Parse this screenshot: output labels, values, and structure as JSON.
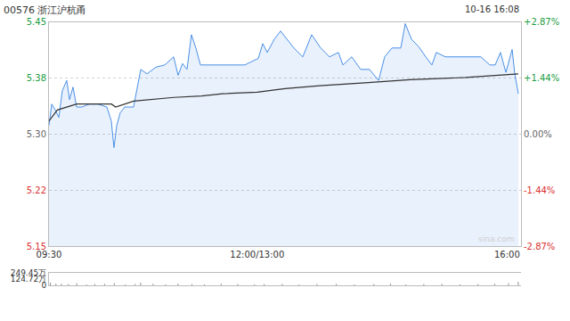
{
  "chart_data": [
    {
      "type": "line",
      "title": "00576 浙江沪杭甬",
      "subtitle": "10-16 16:08",
      "watermark": "sina.com",
      "grid": true,
      "xlim": [
        0,
        340
      ],
      "xticks": [
        {
          "value": 0,
          "label": "09:30"
        },
        {
          "value": 150,
          "label": "12:00/13:00"
        },
        {
          "value": 330,
          "label": "16:00"
        }
      ],
      "ylim": [
        5.148,
        5.452
      ],
      "yticks": [
        {
          "value": 5.148,
          "label": "5.15"
        },
        {
          "value": 5.224,
          "label": "5.22"
        },
        {
          "value": 5.3,
          "label": "5.30"
        },
        {
          "value": 5.376,
          "label": "5.38"
        },
        {
          "value": 5.452,
          "label": "5.45"
        }
      ],
      "y2lim": [
        -2.87,
        2.87
      ],
      "y2ticks": [
        {
          "value": -2.87,
          "label": "-2.87%"
        },
        {
          "value": -1.44,
          "label": "-1.44%"
        },
        {
          "value": 0,
          "label": "0.00%"
        },
        {
          "value": 1.44,
          "label": "+1.44%"
        },
        {
          "value": 2.87,
          "label": "+2.87%"
        }
      ],
      "series": [
        {
          "color": "#4a8fe6",
          "marker": "area",
          "x": [
            0,
            2,
            4.5,
            7.1,
            9.6,
            12.8,
            14.8,
            17.3,
            19.9,
            23.7,
            28.9,
            35.3,
            41.7,
            44.9,
            46.8,
            48.8,
            51.3,
            54.5,
            60.9,
            66.1,
            70.6,
            77.0,
            83.4,
            89.8,
            93.0,
            96.2,
            99.4,
            102.6,
            105.8,
            109.1,
            115.5,
            125.1,
            141.1,
            150.8,
            154.0,
            157.2,
            162.3,
            166.8,
            171.3,
            176.4,
            182.8,
            189.2,
            195.7,
            202.1,
            208.5,
            211.7,
            218.1,
            224.5,
            230.9,
            237.4,
            241.8,
            247.0,
            253.4,
            256.6,
            261.1,
            266.2,
            271.4,
            275.8,
            279.0,
            285.5,
            298.3,
            311.1,
            317.5,
            321.4,
            325.2,
            329.1,
            333.6,
            335.5,
            338.1
          ],
          "values": [
            5.312,
            5.341,
            5.333,
            5.323,
            5.359,
            5.373,
            5.347,
            5.364,
            5.337,
            5.337,
            5.341,
            5.341,
            5.337,
            5.318,
            5.282,
            5.312,
            5.329,
            5.337,
            5.337,
            5.388,
            5.382,
            5.391,
            5.394,
            5.405,
            5.38,
            5.396,
            5.388,
            5.435,
            5.417,
            5.394,
            5.394,
            5.394,
            5.394,
            5.403,
            5.423,
            5.411,
            5.429,
            5.44,
            5.429,
            5.417,
            5.405,
            5.435,
            5.417,
            5.405,
            5.411,
            5.394,
            5.405,
            5.388,
            5.388,
            5.373,
            5.405,
            5.417,
            5.417,
            5.45,
            5.429,
            5.419,
            5.405,
            5.394,
            5.411,
            5.405,
            5.405,
            5.405,
            5.394,
            5.394,
            5.411,
            5.384,
            5.415,
            5.382,
            5.355
          ]
        },
        {
          "color": "#333333",
          "marker": "line",
          "x": [
            0,
            6,
            20,
            45,
            48,
            61,
            90,
            110,
            125,
            150,
            170,
            195,
            230,
            260,
            300,
            338
          ],
          "values": [
            5.318,
            5.333,
            5.341,
            5.341,
            5.337,
            5.345,
            5.35,
            5.352,
            5.355,
            5.357,
            5.362,
            5.366,
            5.37,
            5.374,
            5.377,
            5.382
          ]
        }
      ]
    },
    {
      "type": "bar",
      "color": "#888888",
      "tick_labels": "y",
      "xlim": [
        0,
        340
      ],
      "ylim": [
        0,
        249.45
      ],
      "yticks": [
        0,
        {
          "value": 124.72,
          "label": "124.72万"
        },
        {
          "value": 249.45,
          "label": "249.45万"
        }
      ],
      "x": [
        1,
        5,
        9,
        14,
        20,
        27,
        33,
        40,
        47,
        55,
        62,
        66,
        75,
        84,
        93,
        103,
        112,
        124,
        136,
        148,
        155,
        168,
        180,
        193,
        207,
        220,
        234,
        246,
        257,
        270,
        283,
        296,
        309,
        321,
        331,
        338
      ],
      "values": [
        60,
        35,
        30,
        25,
        40,
        20,
        25,
        30,
        45,
        20,
        25,
        55,
        30,
        20,
        35,
        25,
        20,
        30,
        25,
        20,
        25,
        30,
        20,
        25,
        30,
        20,
        25,
        35,
        20,
        25,
        30,
        20,
        25,
        30,
        40,
        70
      ]
    }
  ]
}
